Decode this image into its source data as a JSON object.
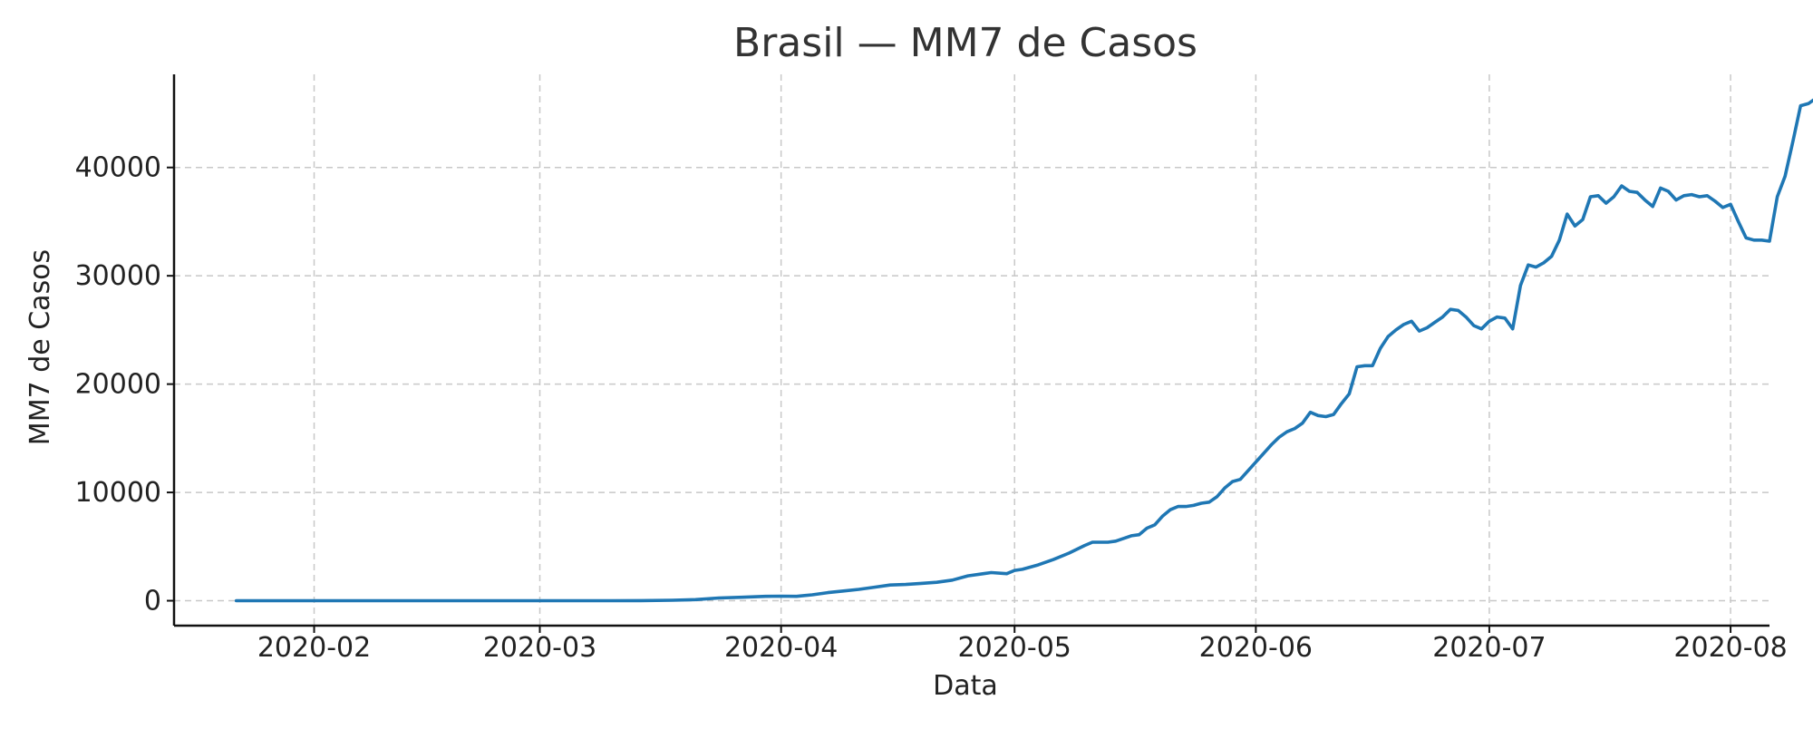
{
  "chart_data": {
    "type": "line",
    "title": "Brasil — MM7 de Casos",
    "xlabel": "Data",
    "ylabel": "MM7 de Casos",
    "x_type": "date",
    "xlim": [
      "2020-01-14",
      "2020-08-06"
    ],
    "ylim": [
      -2300,
      48600
    ],
    "x_ticks": [
      {
        "value": "2020-02-01",
        "label": "2020-02"
      },
      {
        "value": "2020-03-01",
        "label": "2020-03"
      },
      {
        "value": "2020-04-01",
        "label": "2020-04"
      },
      {
        "value": "2020-05-01",
        "label": "2020-05"
      },
      {
        "value": "2020-06-01",
        "label": "2020-06"
      },
      {
        "value": "2020-07-01",
        "label": "2020-07"
      },
      {
        "value": "2020-08-01",
        "label": "2020-08"
      }
    ],
    "y_ticks": [
      0,
      10000,
      20000,
      30000,
      40000
    ],
    "grid": true,
    "colors": {
      "series": "#1f77b4"
    },
    "series": [
      {
        "name": "",
        "points": [
          [
            "2020-01-22",
            0
          ],
          [
            "2020-02-15",
            0
          ],
          [
            "2020-03-01",
            0
          ],
          [
            "2020-03-10",
            2
          ],
          [
            "2020-03-14",
            10
          ],
          [
            "2020-03-18",
            40
          ],
          [
            "2020-03-21",
            100
          ],
          [
            "2020-03-24",
            250
          ],
          [
            "2020-03-27",
            320
          ],
          [
            "2020-03-30",
            400
          ],
          [
            "2020-04-01",
            420
          ],
          [
            "2020-04-03",
            400
          ],
          [
            "2020-04-05",
            550
          ],
          [
            "2020-04-07",
            750
          ],
          [
            "2020-04-09",
            900
          ],
          [
            "2020-04-11",
            1050
          ],
          [
            "2020-04-13",
            1250
          ],
          [
            "2020-04-15",
            1450
          ],
          [
            "2020-04-17",
            1500
          ],
          [
            "2020-04-19",
            1600
          ],
          [
            "2020-04-21",
            1700
          ],
          [
            "2020-04-23",
            1900
          ],
          [
            "2020-04-25",
            2300
          ],
          [
            "2020-04-27",
            2500
          ],
          [
            "2020-04-28",
            2600
          ],
          [
            "2020-04-30",
            2500
          ],
          [
            "2020-05-01",
            2800
          ],
          [
            "2020-05-02",
            2900
          ],
          [
            "2020-05-04",
            3300
          ],
          [
            "2020-05-06",
            3800
          ],
          [
            "2020-05-08",
            4400
          ],
          [
            "2020-05-10",
            5100
          ],
          [
            "2020-05-11",
            5400
          ],
          [
            "2020-05-12",
            5400
          ],
          [
            "2020-05-13",
            5400
          ],
          [
            "2020-05-14",
            5500
          ],
          [
            "2020-05-16",
            6000
          ],
          [
            "2020-05-17",
            6100
          ],
          [
            "2020-05-18",
            6700
          ],
          [
            "2020-05-19",
            7000
          ],
          [
            "2020-05-20",
            7800
          ],
          [
            "2020-05-21",
            8400
          ],
          [
            "2020-05-22",
            8700
          ],
          [
            "2020-05-23",
            8700
          ],
          [
            "2020-05-24",
            8800
          ],
          [
            "2020-05-25",
            9000
          ],
          [
            "2020-05-26",
            9100
          ],
          [
            "2020-05-27",
            9600
          ],
          [
            "2020-05-28",
            10400
          ],
          [
            "2020-05-29",
            11000
          ],
          [
            "2020-05-30",
            11200
          ],
          [
            "2020-06-01",
            12800
          ],
          [
            "2020-06-03",
            14400
          ],
          [
            "2020-06-04",
            15100
          ],
          [
            "2020-06-05",
            15600
          ],
          [
            "2020-06-06",
            15900
          ],
          [
            "2020-06-07",
            16400
          ],
          [
            "2020-06-08",
            17400
          ],
          [
            "2020-06-09",
            17100
          ],
          [
            "2020-06-10",
            17000
          ],
          [
            "2020-06-11",
            17200
          ],
          [
            "2020-06-12",
            18200
          ],
          [
            "2020-06-13",
            19100
          ],
          [
            "2020-06-14",
            21600
          ],
          [
            "2020-06-15",
            21700
          ],
          [
            "2020-06-16",
            21700
          ],
          [
            "2020-06-17",
            23300
          ],
          [
            "2020-06-18",
            24400
          ],
          [
            "2020-06-19",
            25000
          ],
          [
            "2020-06-20",
            25500
          ],
          [
            "2020-06-21",
            25800
          ],
          [
            "2020-06-22",
            24900
          ],
          [
            "2020-06-23",
            25200
          ],
          [
            "2020-06-24",
            25700
          ],
          [
            "2020-06-25",
            26200
          ],
          [
            "2020-06-26",
            26900
          ],
          [
            "2020-06-27",
            26800
          ],
          [
            "2020-06-28",
            26200
          ],
          [
            "2020-06-29",
            25400
          ],
          [
            "2020-06-30",
            25100
          ],
          [
            "2020-07-01",
            25800
          ],
          [
            "2020-07-02",
            26200
          ],
          [
            "2020-07-03",
            26100
          ],
          [
            "2020-07-04",
            25100
          ],
          [
            "2020-07-05",
            29100
          ],
          [
            "2020-07-06",
            31000
          ],
          [
            "2020-07-07",
            30800
          ],
          [
            "2020-07-08",
            31200
          ],
          [
            "2020-07-09",
            31800
          ],
          [
            "2020-07-10",
            33300
          ],
          [
            "2020-07-11",
            35700
          ],
          [
            "2020-07-12",
            34600
          ],
          [
            "2020-07-13",
            35200
          ],
          [
            "2020-07-14",
            37300
          ],
          [
            "2020-07-15",
            37400
          ],
          [
            "2020-07-16",
            36700
          ],
          [
            "2020-07-17",
            37300
          ],
          [
            "2020-07-18",
            38300
          ],
          [
            "2020-07-19",
            37800
          ],
          [
            "2020-07-20",
            37700
          ],
          [
            "2020-07-21",
            37000
          ],
          [
            "2020-07-22",
            36400
          ],
          [
            "2020-07-23",
            38100
          ],
          [
            "2020-07-24",
            37800
          ],
          [
            "2020-07-25",
            37000
          ],
          [
            "2020-07-26",
            37400
          ],
          [
            "2020-07-27",
            37500
          ],
          [
            "2020-07-28",
            37300
          ],
          [
            "2020-07-29",
            37400
          ],
          [
            "2020-07-30",
            36900
          ],
          [
            "2020-07-31",
            36300
          ],
          [
            "2020-08-01",
            36600
          ],
          [
            "2020-08-02",
            35000
          ],
          [
            "2020-08-03",
            33500
          ],
          [
            "2020-08-04",
            33300
          ],
          [
            "2020-08-05",
            33300
          ],
          [
            "2020-08-06",
            33200
          ],
          [
            "2020-08-07",
            37300
          ],
          [
            "2020-08-08",
            39200
          ],
          [
            "2020-08-09",
            42400
          ],
          [
            "2020-08-10",
            45700
          ],
          [
            "2020-08-11",
            45900
          ],
          [
            "2020-08-12",
            46400
          ]
        ]
      }
    ]
  }
}
